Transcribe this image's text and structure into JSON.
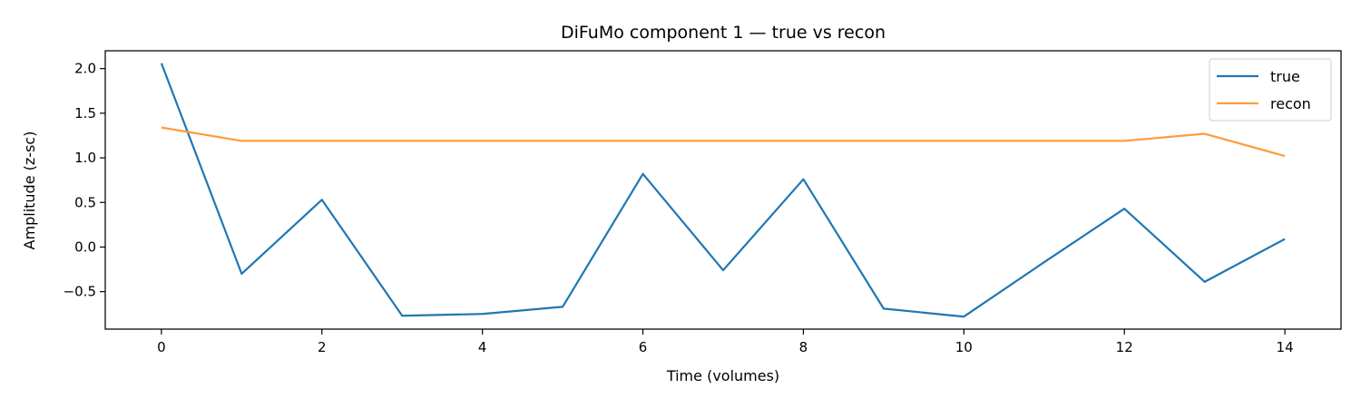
{
  "chart_data": {
    "type": "line",
    "title": "DiFuMo component 1 — true vs recon",
    "xlabel": "Time (volumes)",
    "ylabel": "Amplitude (z-sc)",
    "xlim": [
      -0.7,
      14.7
    ],
    "ylim": [
      -0.92,
      2.2
    ],
    "xticks": [
      0,
      2,
      4,
      6,
      8,
      10,
      12,
      14
    ],
    "yticks": [
      2.0,
      1.5,
      1.0,
      0.5,
      0.0,
      -0.5
    ],
    "ytick_labels": [
      "2.0",
      "1.5",
      "1.0",
      "0.5",
      "0.0",
      "−0.5"
    ],
    "grid": false,
    "legend": "top-right",
    "x": [
      0,
      1,
      2,
      3,
      4,
      5,
      6,
      7,
      8,
      9,
      10,
      11,
      12,
      13,
      14
    ],
    "series": [
      {
        "name": "true",
        "color": "#1f77b4",
        "values": [
          2.06,
          -0.3,
          0.53,
          -0.77,
          -0.75,
          -0.67,
          0.82,
          -0.26,
          0.76,
          -0.69,
          -0.78,
          -0.17,
          0.43,
          -0.39,
          0.09
        ]
      },
      {
        "name": "recon",
        "color": "#ff9b3d",
        "values": [
          1.34,
          1.19,
          1.19,
          1.19,
          1.19,
          1.19,
          1.19,
          1.19,
          1.19,
          1.19,
          1.19,
          1.19,
          1.19,
          1.27,
          1.02
        ]
      }
    ]
  }
}
